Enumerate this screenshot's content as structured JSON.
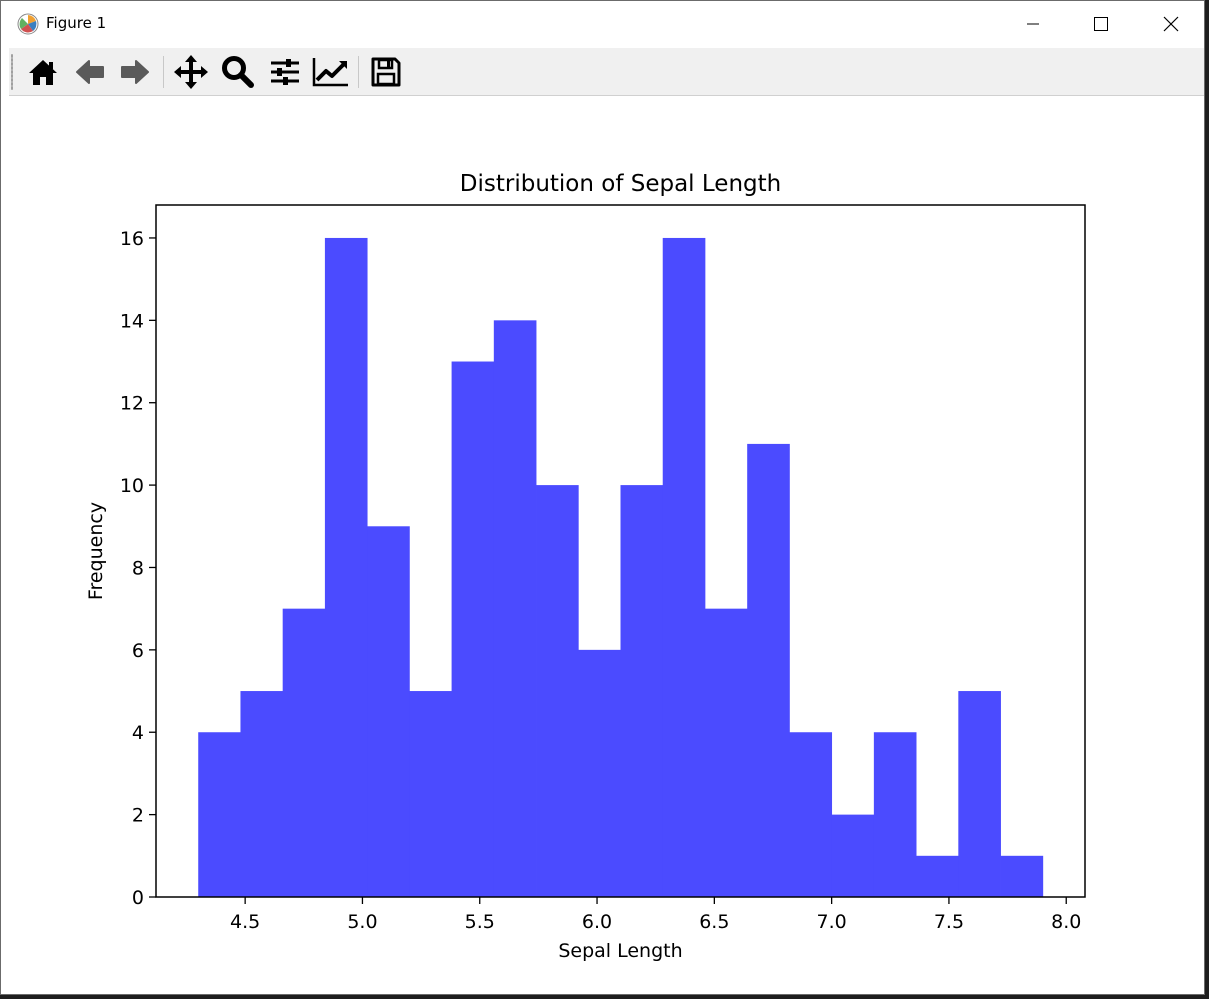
{
  "window": {
    "title": "Figure 1",
    "icons": {
      "app": "matplotlib-logo-icon",
      "minimize": "minimize-icon",
      "maximize": "maximize-icon",
      "close": "close-icon"
    }
  },
  "toolbar": {
    "buttons": [
      {
        "name": "home-icon"
      },
      {
        "name": "back-arrow-icon"
      },
      {
        "name": "forward-arrow-icon"
      },
      {
        "name": "pan-move-icon"
      },
      {
        "name": "zoom-magnifier-icon"
      },
      {
        "name": "configure-subplots-icon"
      },
      {
        "name": "edit-axis-curves-icon"
      },
      {
        "name": "save-floppy-icon"
      }
    ]
  },
  "chart_data": {
    "type": "bar",
    "subtype": "histogram",
    "title": "Distribution of Sepal Length",
    "xlabel": "Sepal Length",
    "ylabel": "Frequency",
    "bin_edges": [
      4.3,
      4.48,
      4.66,
      4.84,
      5.02,
      5.2,
      5.38,
      5.56,
      5.74,
      5.92,
      6.1,
      6.28,
      6.46,
      6.64,
      6.82,
      7.0,
      7.18,
      7.36,
      7.54,
      7.72,
      7.9
    ],
    "values": [
      4,
      5,
      7,
      16,
      9,
      5,
      13,
      14,
      10,
      6,
      10,
      16,
      7,
      11,
      4,
      2,
      4,
      1,
      5,
      1
    ],
    "xlim": [
      4.12,
      8.08
    ],
    "ylim": [
      0,
      16.8
    ],
    "xticks": [
      "4.5",
      "5.0",
      "5.5",
      "6.0",
      "6.5",
      "7.0",
      "7.5",
      "8.0"
    ],
    "yticks": [
      "0",
      "2",
      "4",
      "6",
      "8",
      "10",
      "12",
      "14",
      "16"
    ],
    "bar_color": "#4b4bff",
    "grid": false
  }
}
